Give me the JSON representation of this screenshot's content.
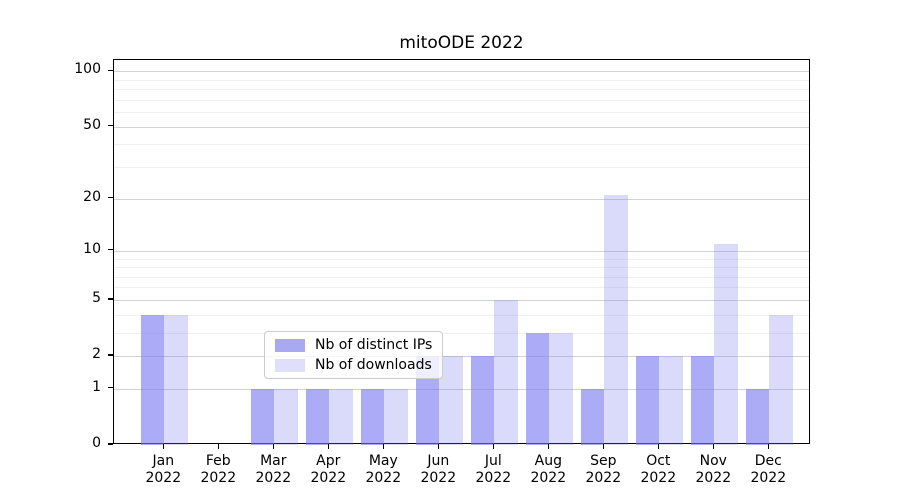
{
  "chart_data": {
    "type": "bar",
    "title": "mitoODE 2022",
    "categories": [
      "Jan",
      "Feb",
      "Mar",
      "Apr",
      "May",
      "Jun",
      "Jul",
      "Aug",
      "Sep",
      "Oct",
      "Nov",
      "Dec"
    ],
    "category_year": "2022",
    "series": [
      {
        "name": "Nb of distinct IPs",
        "color": "#7878f0",
        "alpha": 0.62,
        "legend_color": "#a9a9f1",
        "values": [
          4,
          0,
          1,
          1,
          1,
          2,
          2,
          3,
          1,
          2,
          2,
          1
        ]
      },
      {
        "name": "Nb of downloads",
        "color": "#7878f0",
        "alpha": 0.27,
        "legend_color": "#dfdffb",
        "values": [
          4,
          0,
          1,
          1,
          1,
          2,
          5,
          3,
          21,
          2,
          11,
          4
        ]
      }
    ],
    "y_scale": "log10(1+v)",
    "y_axis": {
      "major_ticks": [
        0,
        1,
        2,
        5,
        10,
        20,
        50,
        100
      ],
      "minor_ticks": [
        3,
        4,
        6,
        7,
        8,
        9,
        30,
        40,
        60,
        70,
        80,
        90
      ],
      "max": 114
    },
    "grid": {
      "major_color": "#d3d3d3",
      "minor_color": "#f0f0f0"
    },
    "legend_position": "lower-center",
    "xlabel": "",
    "ylabel": ""
  }
}
